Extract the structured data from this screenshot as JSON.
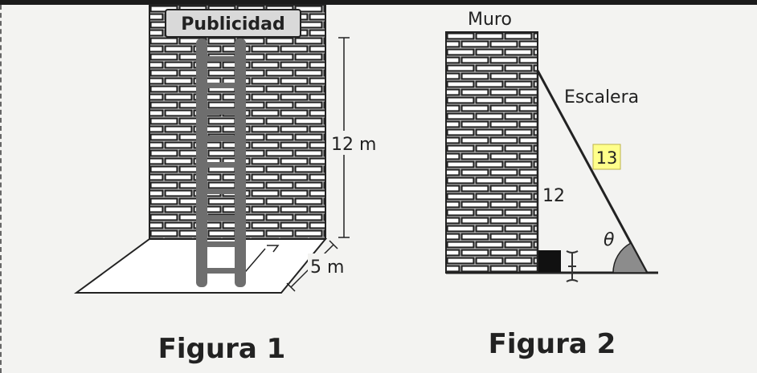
{
  "figure1": {
    "sign": "Publicidad",
    "height_label": "12 m",
    "base_label": "5 m",
    "caption": "Figura 1"
  },
  "figure2": {
    "wall_label": "Muro",
    "ladder_label": "Escalera",
    "hypotenuse_label": "13",
    "height_label": "12",
    "angle_label": "θ",
    "caption": "Figura 2"
  },
  "colors": {
    "highlight": "#ffff8a",
    "angle_fill": "#8c8c8c",
    "ladder": "#6e6e6e",
    "sign_bg": "#d9d9d9"
  }
}
